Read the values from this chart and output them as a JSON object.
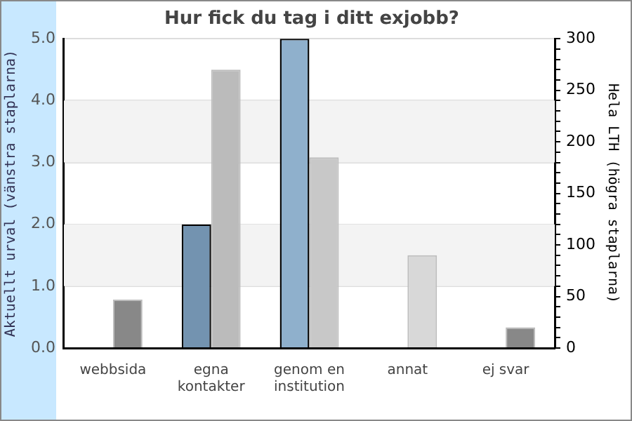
{
  "chart_data": {
    "type": "bar",
    "title": "Hur fick du tag i ditt exjobb?",
    "ylabel": "Aktuellt urval (vänstra staplarna)",
    "y2label": "Hela LTH (högra staplarna)",
    "categories": [
      "webbsida",
      "egna kontakter",
      "genom en institution",
      "annat",
      "ej svar"
    ],
    "series": [
      {
        "colors": [
          "#7393b0",
          "#7393b0",
          "#8fb0cc",
          "#8fb0cc",
          "#8fb0cc"
        ],
        "values": [
          0,
          2,
          5,
          0,
          0
        ]
      },
      {
        "axis": "y2",
        "colors": [
          "#888888",
          "#bbbbbb",
          "#c8c8c8",
          "#d8d8d8",
          "#888888"
        ],
        "values": [
          47,
          270,
          185,
          90,
          20
        ]
      }
    ],
    "ylim": [
      0,
      5
    ],
    "yticks": [
      {
        "value": 0,
        "label": "0.0"
      },
      {
        "value": 1,
        "label": "1.0"
      },
      {
        "value": 2,
        "label": "2.0"
      },
      {
        "value": 3,
        "label": "3.0"
      },
      {
        "value": 4,
        "label": "4.0"
      },
      {
        "value": 5,
        "label": "5.0"
      }
    ],
    "y2lim": [
      0,
      300
    ],
    "y2ticks": [
      0,
      {
        "value": 10,
        "label": null
      },
      {
        "value": 20,
        "label": null
      },
      {
        "value": 30,
        "label": null
      },
      {
        "value": 40,
        "label": null
      },
      50,
      {
        "value": 60,
        "label": null
      },
      {
        "value": 70,
        "label": null
      },
      {
        "value": 80,
        "label": null
      },
      {
        "value": 90,
        "label": null
      },
      100,
      {
        "value": 110,
        "label": null
      },
      {
        "value": 120,
        "label": null
      },
      {
        "value": 130,
        "label": null
      },
      {
        "value": 140,
        "label": null
      },
      150,
      {
        "value": 160,
        "label": null
      },
      {
        "value": 170,
        "label": null
      },
      {
        "value": 180,
        "label": null
      },
      {
        "value": 190,
        "label": null
      },
      200,
      {
        "value": 210,
        "label": null
      },
      {
        "value": 220,
        "label": null
      },
      {
        "value": 230,
        "label": null
      },
      {
        "value": 240,
        "label": null
      },
      250,
      {
        "value": 260,
        "label": null
      },
      {
        "value": 270,
        "label": null
      },
      {
        "value": 280,
        "label": null
      },
      {
        "value": 290,
        "label": null
      },
      300
    ],
    "grid": "y",
    "legend": false
  }
}
